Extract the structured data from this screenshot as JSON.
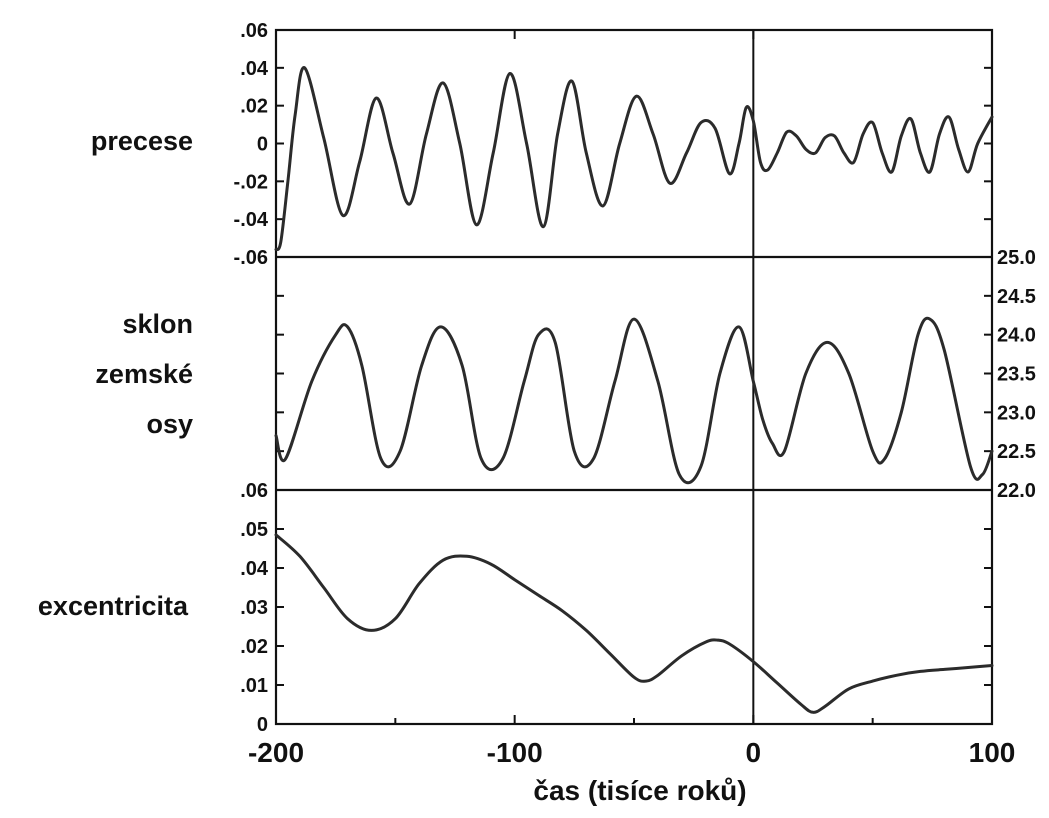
{
  "chart_data": {
    "type": "line",
    "x_axis": {
      "label": "čas (tisíce roků)",
      "range": [
        -200,
        100
      ],
      "ticks": [
        -200,
        -100,
        0,
        100
      ],
      "tick_labels": [
        "-200",
        "-100",
        "0",
        "100"
      ]
    },
    "vertical_reference_line_x": 0,
    "panels": [
      {
        "key": "precession",
        "row_label": [
          "precese"
        ],
        "axis_side": "left",
        "ylim": [
          -0.06,
          0.06
        ],
        "y_ticks": [
          -0.06,
          -0.04,
          -0.02,
          0,
          0.02,
          0.04,
          0.06
        ],
        "y_tick_labels": [
          "-.06",
          "-.04",
          "-.02",
          "0",
          ".02",
          ".04",
          ".06"
        ],
        "x": [
          -200,
          -198,
          -195,
          -192,
          -188,
          -180,
          -172,
          -165,
          -158,
          -151,
          -144,
          -137,
          -130,
          -123,
          -116,
          -109,
          -102,
          -95,
          -88,
          -82,
          -76,
          -70,
          -63,
          -56,
          -49,
          -42,
          -35,
          -28,
          -22,
          -16,
          -10,
          -6,
          -3,
          0,
          3,
          6,
          10,
          14,
          18,
          22,
          26,
          30,
          34,
          38,
          42,
          46,
          50,
          54,
          58,
          62,
          66,
          70,
          74,
          78,
          82,
          86,
          90,
          94,
          100
        ],
        "values": [
          -0.056,
          -0.052,
          -0.02,
          0.015,
          0.04,
          0.003,
          -0.038,
          -0.01,
          0.024,
          -0.005,
          -0.032,
          0.005,
          0.032,
          0.0,
          -0.043,
          -0.005,
          0.037,
          0.0,
          -0.044,
          0.005,
          0.033,
          -0.005,
          -0.033,
          0.0,
          0.025,
          0.005,
          -0.021,
          -0.005,
          0.011,
          0.008,
          -0.016,
          0.0,
          0.019,
          0.012,
          -0.01,
          -0.014,
          -0.005,
          0.006,
          0.004,
          -0.003,
          -0.005,
          0.003,
          0.004,
          -0.005,
          -0.01,
          0.005,
          0.011,
          -0.005,
          -0.015,
          0.004,
          0.013,
          -0.005,
          -0.015,
          0.005,
          0.014,
          -0.003,
          -0.015,
          0.0,
          0.014
        ]
      },
      {
        "key": "obliquity",
        "row_label": [
          "sklon",
          "zemské",
          "osy"
        ],
        "axis_side": "right",
        "ylim": [
          22.0,
          25.0
        ],
        "y_ticks": [
          22.0,
          22.5,
          23.0,
          23.5,
          24.0,
          24.5,
          25.0
        ],
        "y_tick_labels": [
          "22.0",
          "22.5",
          "23.0",
          "23.5",
          "24.0",
          "24.5",
          "25.0"
        ],
        "x": [
          -200,
          -196,
          -185,
          -175,
          -170,
          -164,
          -156,
          -148,
          -139,
          -131,
          -122,
          -114,
          -105,
          -96,
          -90,
          -83,
          -75,
          -67,
          -58,
          -50,
          -40,
          -31,
          -22,
          -14,
          -6,
          0,
          4,
          8,
          13,
          22,
          31,
          40,
          50,
          55,
          62,
          69,
          74,
          80,
          91,
          96,
          100
        ],
        "values": [
          22.7,
          22.4,
          23.4,
          24.0,
          24.1,
          23.6,
          22.4,
          22.5,
          23.6,
          24.1,
          23.6,
          22.4,
          22.4,
          23.4,
          24.0,
          23.9,
          22.5,
          22.4,
          23.4,
          24.2,
          23.4,
          22.2,
          22.3,
          23.5,
          24.1,
          23.4,
          22.9,
          22.6,
          22.5,
          23.5,
          23.9,
          23.5,
          22.5,
          22.4,
          23.0,
          24.0,
          24.2,
          23.8,
          22.3,
          22.2,
          22.5
        ]
      },
      {
        "key": "eccentricity",
        "row_label": [
          "excentricita"
        ],
        "axis_side": "left",
        "ylim": [
          0,
          0.06
        ],
        "y_ticks": [
          0,
          0.01,
          0.02,
          0.03,
          0.04,
          0.05,
          0.06
        ],
        "y_tick_labels": [
          "0",
          ".01",
          ".02",
          ".03",
          ".04",
          ".05",
          ".06"
        ],
        "x": [
          -200,
          -190,
          -180,
          -170,
          -160,
          -150,
          -140,
          -130,
          -120,
          -110,
          -100,
          -90,
          -80,
          -70,
          -60,
          -50,
          -45,
          -40,
          -30,
          -20,
          -15,
          -10,
          0,
          10,
          20,
          25,
          30,
          40,
          50,
          60,
          70,
          80,
          90,
          100
        ],
        "values": [
          0.0485,
          0.043,
          0.035,
          0.027,
          0.024,
          0.027,
          0.036,
          0.042,
          0.043,
          0.041,
          0.037,
          0.033,
          0.029,
          0.024,
          0.018,
          0.012,
          0.011,
          0.0125,
          0.0175,
          0.021,
          0.0215,
          0.0205,
          0.016,
          0.0105,
          0.005,
          0.003,
          0.0045,
          0.009,
          0.011,
          0.0125,
          0.0135,
          0.014,
          0.0145,
          0.015
        ]
      }
    ]
  }
}
